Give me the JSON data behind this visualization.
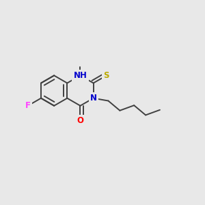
{
  "background_color": "#e8e8e8",
  "bond_color": "#404040",
  "atom_colors": {
    "N": "#0000cc",
    "O": "#ff0000",
    "S": "#bbaa00",
    "F": "#ff44ff",
    "C": "#404040"
  },
  "figsize": [
    3.0,
    3.0
  ],
  "dpi": 100,
  "bond_lw": 1.4,
  "font_size": 8.5
}
